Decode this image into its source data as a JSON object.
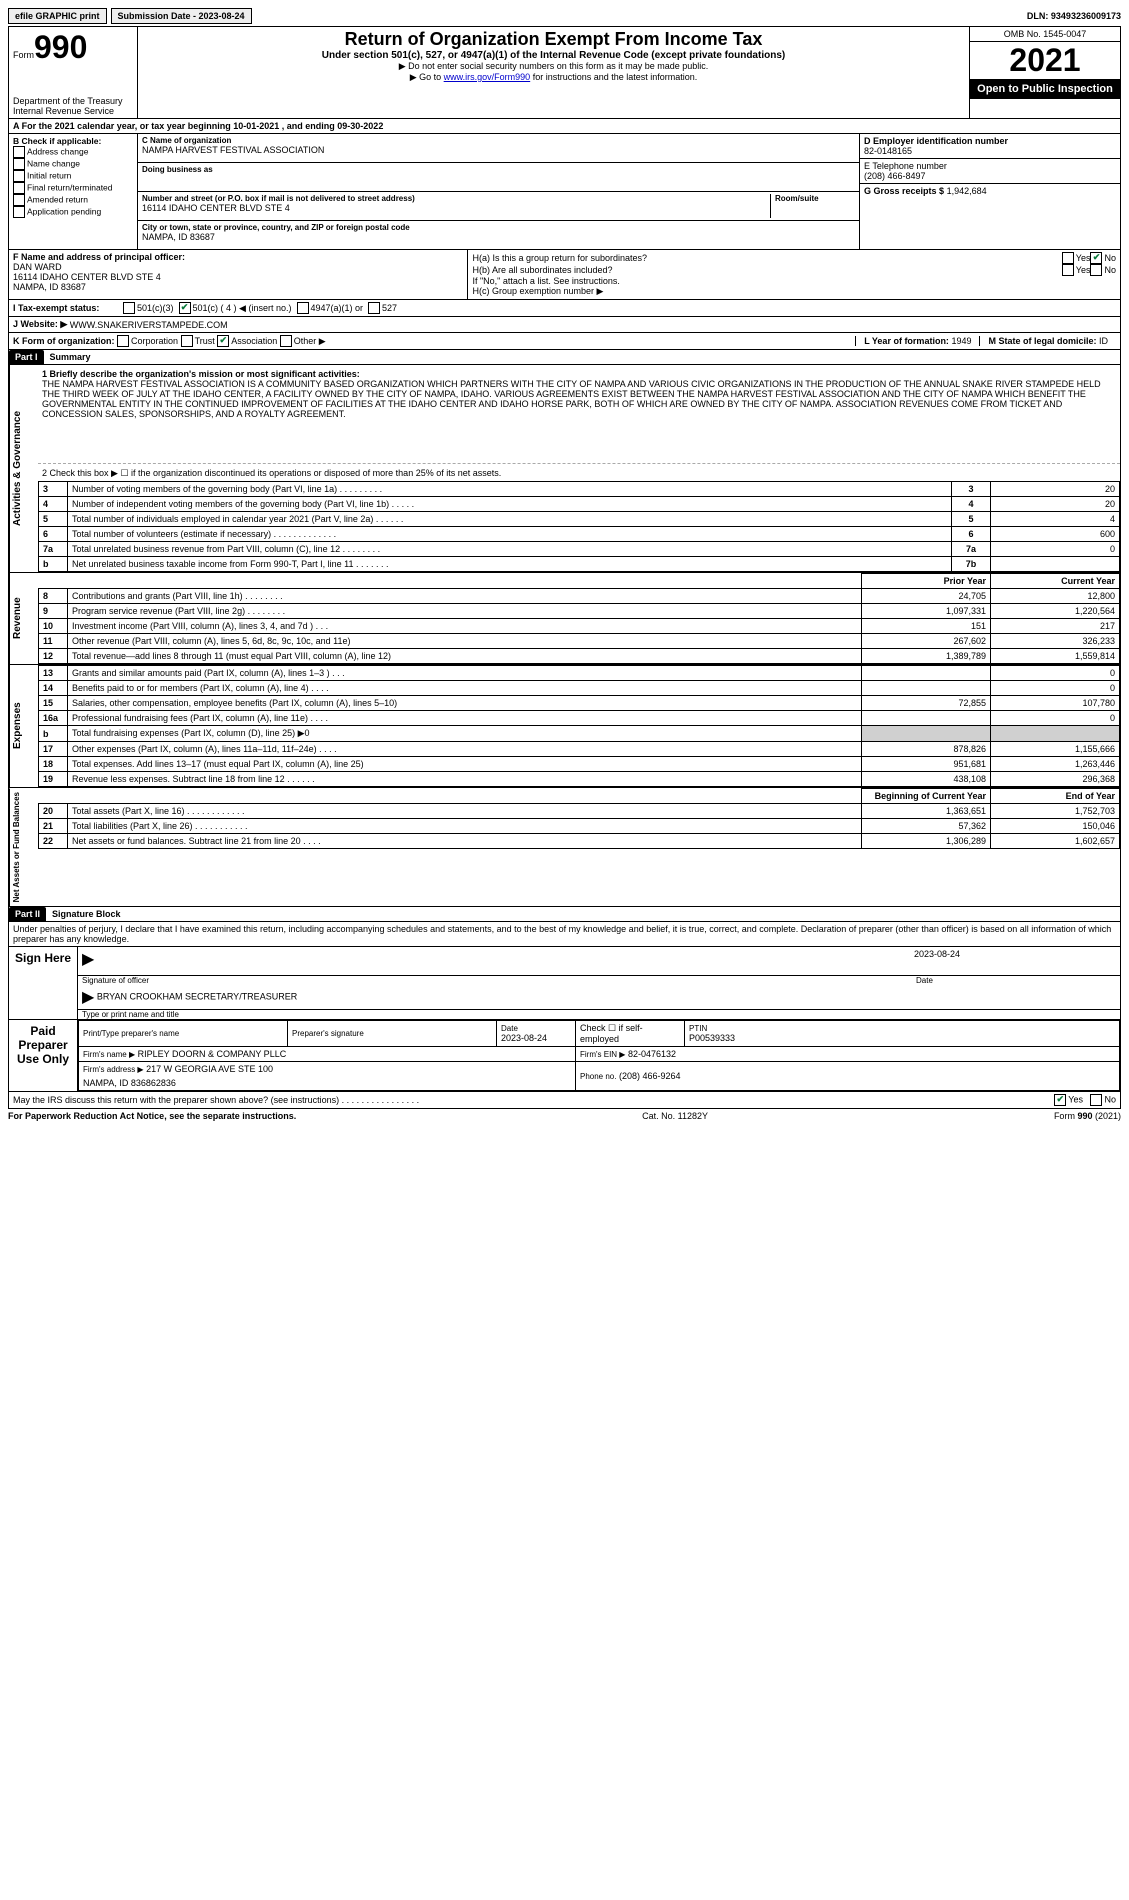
{
  "top": {
    "efile": "efile GRAPHIC print",
    "submission_label": "Submission Date - 2023-08-24",
    "dln": "DLN: 93493236009173"
  },
  "header": {
    "form_prefix": "Form",
    "form_number": "990",
    "title": "Return of Organization Exempt From Income Tax",
    "subtitle": "Under section 501(c), 527, or 4947(a)(1) of the Internal Revenue Code (except private foundations)",
    "note1": "▶ Do not enter social security numbers on this form as it may be made public.",
    "note2_prefix": "▶ Go to ",
    "note2_link": "www.irs.gov/Form990",
    "note2_suffix": " for instructions and the latest information.",
    "dept": "Department of the Treasury\nInternal Revenue Service",
    "omb": "OMB No. 1545-0047",
    "year": "2021",
    "inspection": "Open to Public Inspection"
  },
  "tax_year": "A For the 2021 calendar year, or tax year beginning 10-01-2021   , and ending 09-30-2022",
  "section_b": {
    "header": "B Check if applicable:",
    "items": [
      "Address change",
      "Name change",
      "Initial return",
      "Final return/terminated",
      "Amended return",
      "Application pending"
    ]
  },
  "section_c": {
    "name_label": "C Name of organization",
    "name": "NAMPA HARVEST FESTIVAL ASSOCIATION",
    "dba_label": "Doing business as",
    "dba": "",
    "addr_label": "Number and street (or P.O. box if mail is not delivered to street address)",
    "addr": "16114 IDAHO CENTER BLVD STE 4",
    "room_label": "Room/suite",
    "city_label": "City or town, state or province, country, and ZIP or foreign postal code",
    "city": "NAMPA, ID  83687"
  },
  "section_de": {
    "d_label": "D Employer identification number",
    "d_val": "82-0148165",
    "e_label": "E Telephone number",
    "e_val": "(208) 466-8497",
    "g_label": "G Gross receipts $",
    "g_val": "1,942,684"
  },
  "section_f": {
    "label": "F  Name and address of principal officer:",
    "name": "DAN WARD",
    "addr1": "16114 IDAHO CENTER BLVD STE 4",
    "addr2": "NAMPA, ID  83687"
  },
  "section_h": {
    "h_a": "H(a)  Is this a group return for subordinates?",
    "h_b": "H(b)  Are all subordinates included?",
    "h_b_note": "If \"No,\" attach a list. See instructions.",
    "h_c": "H(c)  Group exemption number ▶",
    "yes": "Yes",
    "no": "No"
  },
  "line_i": {
    "label": "I   Tax-exempt status:",
    "opt1": "501(c)(3)",
    "opt2": "501(c) ( 4 ) ◀ (insert no.)",
    "opt3": "4947(a)(1) or",
    "opt4": "527"
  },
  "line_j": {
    "label": "J   Website: ▶",
    "val": "WWW.SNAKERIVERSTAMPEDE.COM"
  },
  "line_k": {
    "label": "K Form of organization:",
    "opts": [
      "Corporation",
      "Trust",
      "Association",
      "Other ▶"
    ],
    "l_label": "L Year of formation: ",
    "l_val": "1949",
    "m_label": "M State of legal domicile: ",
    "m_val": "ID"
  },
  "part1": {
    "header": "Part I",
    "title": "Summary",
    "q1_label": "1   Briefly describe the organization's mission or most significant activities:",
    "q1_text": "THE NAMPA HARVEST FESTIVAL ASSOCIATION IS A COMMUNITY BASED ORGANIZATION WHICH PARTNERS WITH THE CITY OF NAMPA AND VARIOUS CIVIC ORGANIZATIONS IN THE PRODUCTION OF THE ANNUAL SNAKE RIVER STAMPEDE HELD THE THIRD WEEK OF JULY AT THE IDAHO CENTER, A FACILITY OWNED BY THE CITY OF NAMPA, IDAHO. VARIOUS AGREEMENTS EXIST BETWEEN THE NAMPA HARVEST FESTIVAL ASSOCIATION AND THE CITY OF NAMPA WHICH BENEFIT THE GOVERNMENTAL ENTITY IN THE CONTINUED IMPROVEMENT OF FACILITIES AT THE IDAHO CENTER AND IDAHO HORSE PARK, BOTH OF WHICH ARE OWNED BY THE CITY OF NAMPA. ASSOCIATION REVENUES COME FROM TICKET AND CONCESSION SALES, SPONSORSHIPS, AND A ROYALTY AGREEMENT.",
    "q2": "2   Check this box ▶ ☐  if the organization discontinued its operations or disposed of more than 25% of its net assets.",
    "vert_ag": "Activities & Governance",
    "vert_rev": "Revenue",
    "vert_exp": "Expenses",
    "vert_net": "Net Assets or Fund Balances",
    "rows_ag": [
      {
        "n": "3",
        "t": "Number of voting members of the governing body (Part VI, line 1a)   .    .    .    .    .    .    .    .    .",
        "ref": "3",
        "v": "20"
      },
      {
        "n": "4",
        "t": "Number of independent voting members of the governing body (Part VI, line 1b)    .    .    .    .    .",
        "ref": "4",
        "v": "20"
      },
      {
        "n": "5",
        "t": "Total number of individuals employed in calendar year 2021 (Part V, line 2a)   .    .    .    .    .    .",
        "ref": "5",
        "v": "4"
      },
      {
        "n": "6",
        "t": "Total number of volunteers (estimate if necessary)   .    .    .    .    .    .    .    .    .    .    .    .    .",
        "ref": "6",
        "v": "600"
      },
      {
        "n": "7a",
        "t": "Total unrelated business revenue from Part VIII, column (C), line 12   .    .    .    .    .    .    .    .",
        "ref": "7a",
        "v": "0"
      },
      {
        "n": "b",
        "t": "Net unrelated business taxable income from Form 990-T, Part I, line 11   .    .    .    .    .    .    .",
        "ref": "7b",
        "v": ""
      }
    ],
    "col_prior": "Prior Year",
    "col_current": "Current Year",
    "col_begin": "Beginning of Current Year",
    "col_end": "End of Year",
    "rows_rev": [
      {
        "n": "8",
        "t": "Contributions and grants (Part VIII, line 1h)   .    .    .    .    .    .    .    .",
        "p": "24,705",
        "c": "12,800"
      },
      {
        "n": "9",
        "t": "Program service revenue (Part VIII, line 2g)   .    .    .    .    .    .    .    .",
        "p": "1,097,331",
        "c": "1,220,564"
      },
      {
        "n": "10",
        "t": "Investment income (Part VIII, column (A), lines 3, 4, and 7d )    .    .    .",
        "p": "151",
        "c": "217"
      },
      {
        "n": "11",
        "t": "Other revenue (Part VIII, column (A), lines 5, 6d, 8c, 9c, 10c, and 11e)",
        "p": "267,602",
        "c": "326,233"
      },
      {
        "n": "12",
        "t": "Total revenue—add lines 8 through 11 (must equal Part VIII, column (A), line 12)",
        "p": "1,389,789",
        "c": "1,559,814"
      }
    ],
    "rows_exp": [
      {
        "n": "13",
        "t": "Grants and similar amounts paid (Part IX, column (A), lines 1–3 )   .    .    .",
        "p": "",
        "c": "0"
      },
      {
        "n": "14",
        "t": "Benefits paid to or for members (Part IX, column (A), line 4)   .    .    .    .",
        "p": "",
        "c": "0"
      },
      {
        "n": "15",
        "t": "Salaries, other compensation, employee benefits (Part IX, column (A), lines 5–10)",
        "p": "72,855",
        "c": "107,780"
      },
      {
        "n": "16a",
        "t": "Professional fundraising fees (Part IX, column (A), line 11e)   .    .    .    .",
        "p": "",
        "c": "0"
      },
      {
        "n": "b",
        "t": "Total fundraising expenses (Part IX, column (D), line 25) ▶0",
        "p": "SHADE",
        "c": "SHADE"
      },
      {
        "n": "17",
        "t": "Other expenses (Part IX, column (A), lines 11a–11d, 11f–24e)   .    .    .    .",
        "p": "878,826",
        "c": "1,155,666"
      },
      {
        "n": "18",
        "t": "Total expenses. Add lines 13–17 (must equal Part IX, column (A), line 25)",
        "p": "951,681",
        "c": "1,263,446"
      },
      {
        "n": "19",
        "t": "Revenue less expenses. Subtract line 18 from line 12   .    .    .    .    .    .",
        "p": "438,108",
        "c": "296,368"
      }
    ],
    "rows_net": [
      {
        "n": "20",
        "t": "Total assets (Part X, line 16)   .    .    .    .    .    .    .    .    .    .    .    .",
        "p": "1,363,651",
        "c": "1,752,703"
      },
      {
        "n": "21",
        "t": "Total liabilities (Part X, line 26)   .    .    .    .    .    .    .    .    .    .    .",
        "p": "57,362",
        "c": "150,046"
      },
      {
        "n": "22",
        "t": "Net assets or fund balances. Subtract line 21 from line 20   .    .    .    .",
        "p": "1,306,289",
        "c": "1,602,657"
      }
    ]
  },
  "part2": {
    "header": "Part II",
    "title": "Signature Block",
    "perjury": "Under penalties of perjury, I declare that I have examined this return, including accompanying schedules and statements, and to the best of my knowledge and belief, it is true, correct, and complete. Declaration of preparer (other than officer) is based on all information of which preparer has any knowledge.",
    "sign_here": "Sign Here",
    "sig_officer": "Signature of officer",
    "sig_date_label": "Date",
    "sig_date": "2023-08-24",
    "sig_name": "BRYAN CROOKHAM  SECRETARY/TREASURER",
    "sig_type": "Type or print name and title",
    "paid": "Paid Preparer Use Only",
    "prep_name_label": "Print/Type preparer's name",
    "prep_sig_label": "Preparer's signature",
    "prep_date_label": "Date",
    "prep_date": "2023-08-24",
    "self_emp": "Check ☐ if self-employed",
    "ptin_label": "PTIN",
    "ptin": "P00539333",
    "firm_name_label": "Firm's name      ▶",
    "firm_name": "RIPLEY DOORN & COMPANY PLLC",
    "firm_ein_label": "Firm's EIN ▶",
    "firm_ein": "82-0476132",
    "firm_addr_label": "Firm's address ▶",
    "firm_addr1": "217 W GEORGIA AVE STE 100",
    "firm_addr2": "NAMPA, ID  836862836",
    "phone_label": "Phone no.",
    "phone": "(208) 466-9264",
    "discuss": "May the IRS discuss this return with the preparer shown above? (see instructions)   .    .    .    .    .    .    .    .    .    .    .    .    .    .    .    .",
    "discuss_yes": "Yes",
    "discuss_no": "No"
  },
  "footer": {
    "left": "For Paperwork Reduction Act Notice, see the separate instructions.",
    "mid": "Cat. No. 11282Y",
    "right": "Form 990 (2021)"
  }
}
